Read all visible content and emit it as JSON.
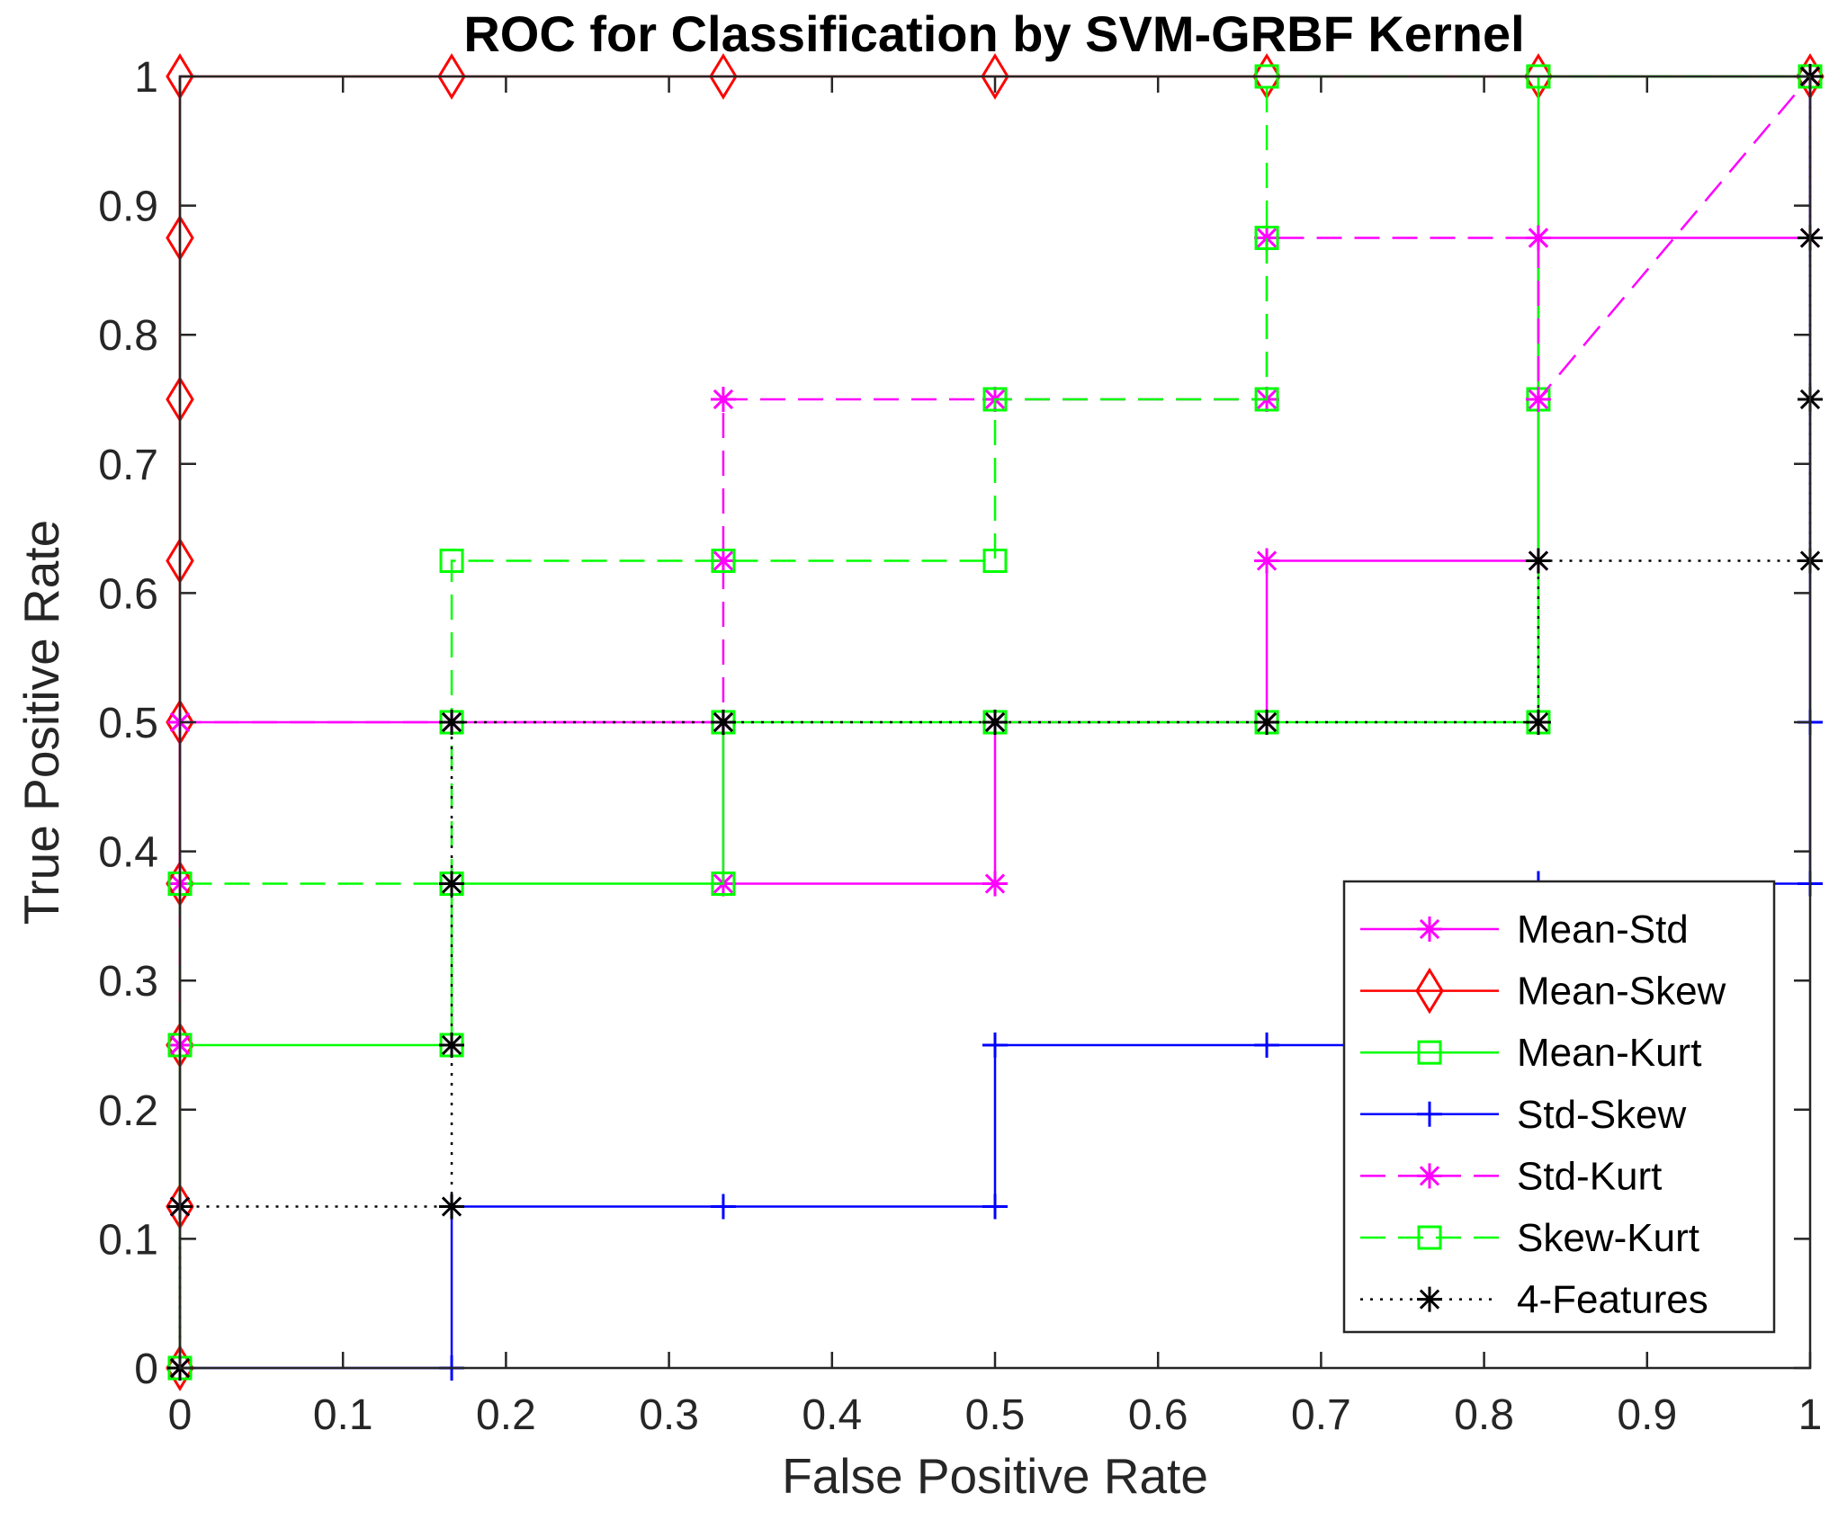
{
  "chart_data": {
    "type": "line",
    "title": "ROC for Classification by SVM-GRBF Kernel",
    "xlabel": "False Positive Rate",
    "ylabel": "True Positive Rate",
    "xlim": [
      0,
      1
    ],
    "ylim": [
      0,
      1
    ],
    "x_ticks": [
      0,
      0.1,
      0.2,
      0.3,
      0.4,
      0.5,
      0.6,
      0.7,
      0.8,
      0.9,
      1
    ],
    "x_tick_labels": [
      "0",
      "0.1",
      "0.2",
      "0.3",
      "0.4",
      "0.5",
      "0.6",
      "0.7",
      "0.8",
      "0.9",
      "1"
    ],
    "y_ticks": [
      0,
      0.1,
      0.2,
      0.3,
      0.4,
      0.5,
      0.6,
      0.7,
      0.8,
      0.9,
      1
    ],
    "y_tick_labels": [
      "0",
      "0.1",
      "0.2",
      "0.3",
      "0.4",
      "0.5",
      "0.6",
      "0.7",
      "0.8",
      "0.9",
      "1"
    ],
    "grid": false,
    "legend_position": "bottom-right",
    "series": [
      {
        "name": "Mean-Std",
        "color": "#ff00ff",
        "line_style": "solid",
        "marker": "asterisk",
        "x": [
          0,
          0,
          0,
          0,
          0,
          0.1667,
          0.1667,
          0.3333,
          0.3333,
          0.5,
          0.5,
          0.5,
          0.6667,
          0.6667,
          0.8333,
          0.8333,
          1,
          1
        ],
        "y": [
          0,
          0.125,
          0.25,
          0.375,
          0.5,
          0.5,
          0.5,
          0.5,
          0.375,
          0.375,
          0.5,
          0.5,
          0.5,
          0.625,
          0.625,
          0.875,
          0.875,
          1
        ]
      },
      {
        "name": "Mean-Skew",
        "color": "#ff0000",
        "line_style": "solid",
        "marker": "diamond",
        "x": [
          0,
          0,
          0,
          0,
          0,
          0,
          0,
          0,
          0,
          0.1667,
          0.3333,
          0.5,
          0.6667,
          0.8333,
          1
        ],
        "y": [
          0,
          0.125,
          0.25,
          0.375,
          0.5,
          0.625,
          0.75,
          0.875,
          1,
          1,
          1,
          1,
          1,
          1,
          1
        ]
      },
      {
        "name": "Mean-Kurt",
        "color": "#00ff00",
        "line_style": "solid",
        "marker": "square",
        "x": [
          0,
          0,
          0.1667,
          0.1667,
          0.3333,
          0.3333,
          0.5,
          0.6667,
          0.8333,
          0.8333,
          0.8333,
          1
        ],
        "y": [
          0,
          0.25,
          0.25,
          0.375,
          0.375,
          0.5,
          0.5,
          0.5,
          0.5,
          0.75,
          1,
          1
        ]
      },
      {
        "name": "Std-Skew",
        "color": "#0000ff",
        "line_style": "solid",
        "marker": "plus",
        "x": [
          0,
          0.1667,
          0.1667,
          0.3333,
          0.5,
          0.5,
          0.6667,
          0.8333,
          0.8333,
          1,
          1,
          1
        ],
        "y": [
          0,
          0,
          0.125,
          0.125,
          0.125,
          0.25,
          0.25,
          0.25,
          0.375,
          0.375,
          0.5,
          1
        ]
      },
      {
        "name": "Std-Kurt",
        "color": "#ff00ff",
        "line_style": "dashed",
        "marker": "asterisk",
        "x": [
          0,
          0,
          0,
          0,
          0.1667,
          0.3333,
          0.3333,
          0.3333,
          0.5,
          0.6667,
          0.6667,
          0.8333,
          0.8333,
          1
        ],
        "y": [
          0,
          0.125,
          0.25,
          0.5,
          0.5,
          0.5,
          0.625,
          0.75,
          0.75,
          0.75,
          0.875,
          0.875,
          0.75,
          1
        ]
      },
      {
        "name": "Skew-Kurt",
        "color": "#00ff00",
        "line_style": "dashed",
        "marker": "square",
        "x": [
          0,
          0,
          0,
          0.1667,
          0.1667,
          0.1667,
          0.3333,
          0.5,
          0.5,
          0.6667,
          0.6667,
          0.6667,
          0.8333,
          1
        ],
        "y": [
          0,
          0.25,
          0.375,
          0.375,
          0.5,
          0.625,
          0.625,
          0.625,
          0.75,
          0.75,
          0.875,
          1,
          1,
          1
        ]
      },
      {
        "name": "4-Features",
        "color": "#000000",
        "line_style": "dotted",
        "marker": "asterisk",
        "x": [
          0,
          0,
          0.1667,
          0.1667,
          0.1667,
          0.1667,
          0.3333,
          0.5,
          0.6667,
          0.8333,
          0.8333,
          1,
          1,
          1,
          1
        ],
        "y": [
          0,
          0.125,
          0.125,
          0.25,
          0.375,
          0.5,
          0.5,
          0.5,
          0.5,
          0.5,
          0.625,
          0.625,
          0.75,
          0.875,
          1
        ]
      }
    ]
  }
}
